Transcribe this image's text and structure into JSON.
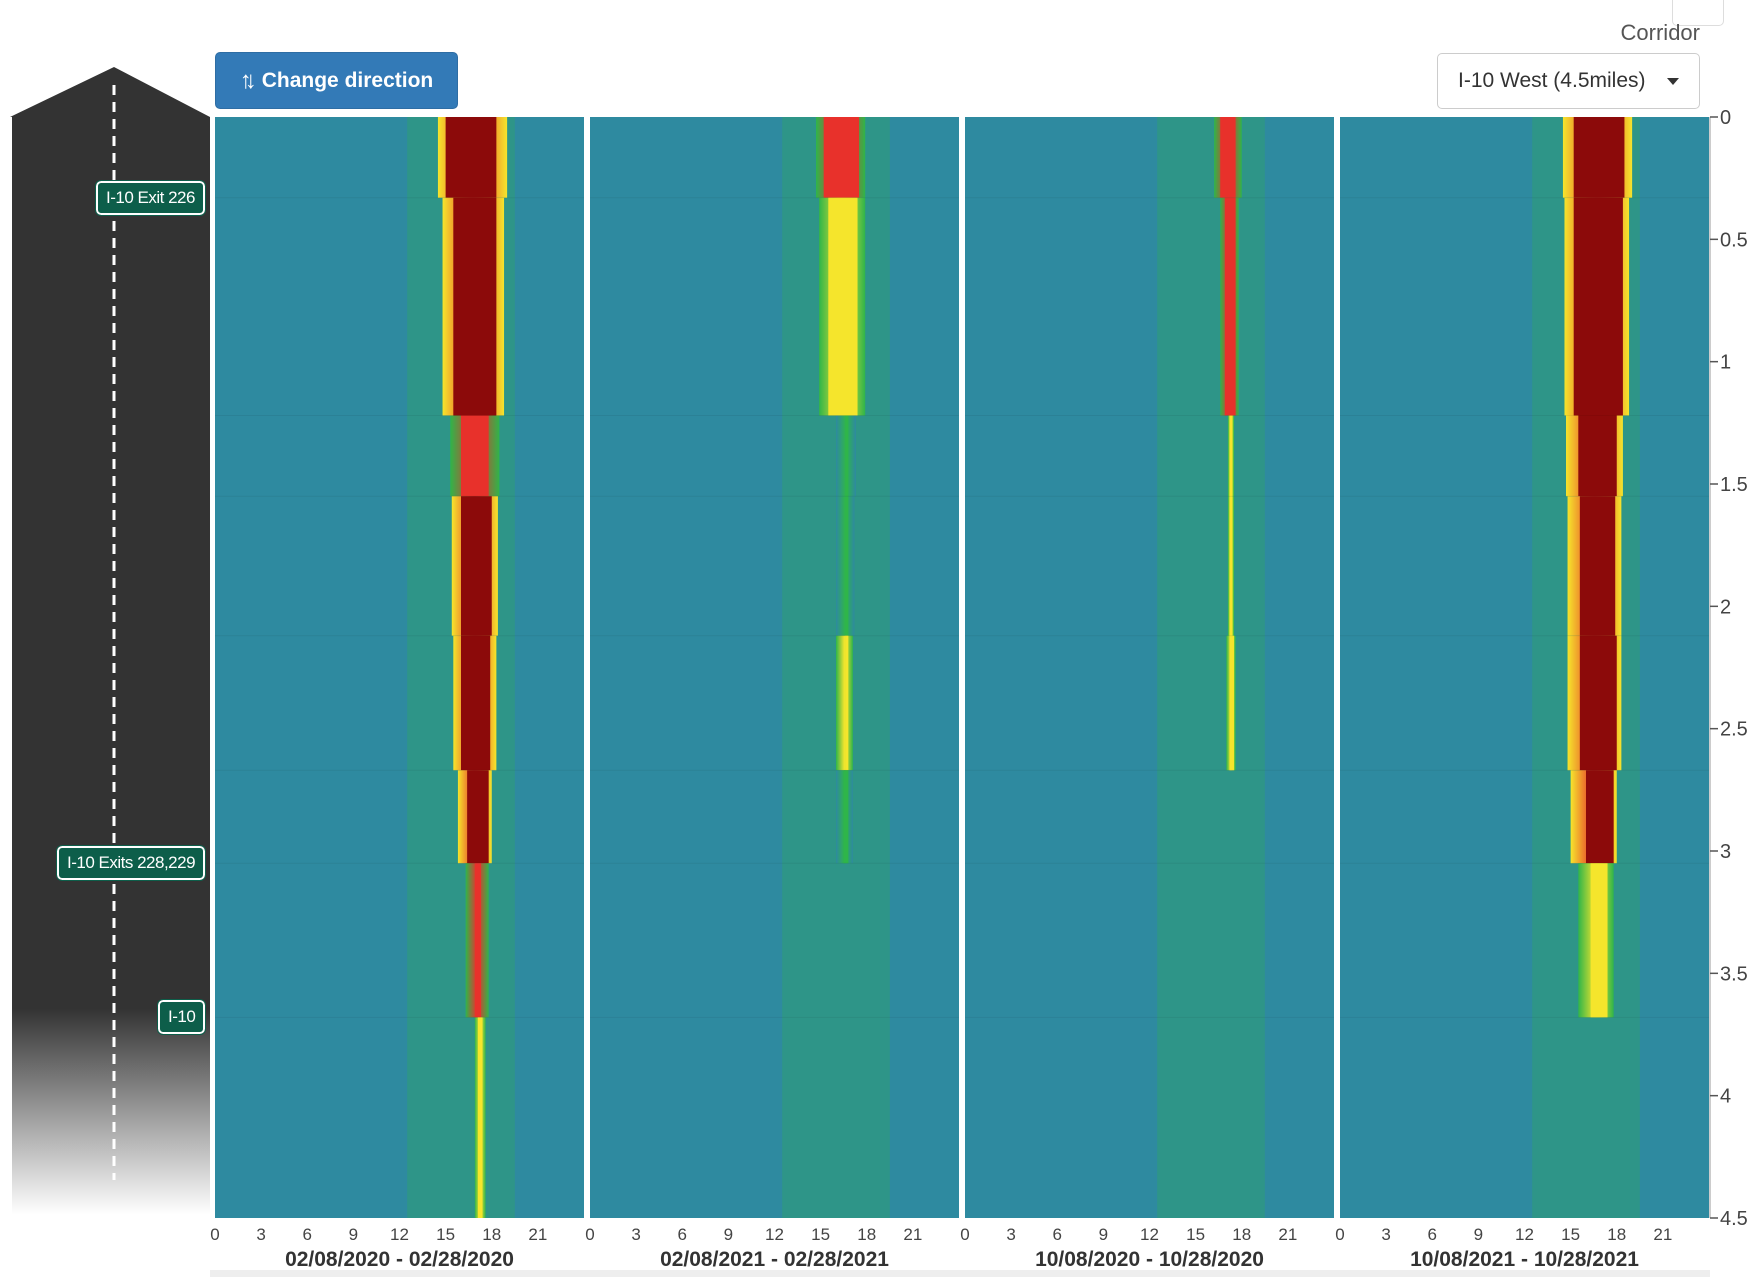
{
  "controls": {
    "change_direction_label": "Change direction",
    "change_direction_icon": "up-down-arrows-icon",
    "corridor_label": "Corridor",
    "corridor_value": "I-10 West (4.5miles)"
  },
  "ramps": [
    {
      "label": "I-10 Exit 226",
      "mile": 0.33
    },
    {
      "label": "I-10 Exits 228,229",
      "mile": 3.05
    },
    {
      "label": "I-10",
      "mile": 3.68
    }
  ],
  "colors": {
    "low": "#2e8aa0",
    "free_flow": "#2fb54a",
    "moderate": "#f5e52c",
    "heavy": "#e8312b",
    "severe": "#8c0a0a",
    "road": "#333333",
    "ramp_badge": "#0d5e4a"
  },
  "chart_data": {
    "type": "heatmap",
    "y_axis": {
      "ticks": [
        "0",
        "0.5",
        "1",
        "1.5",
        "2",
        "2.5",
        "3",
        "3.5",
        "4",
        "4.5"
      ],
      "range": [
        0,
        4.5
      ],
      "reversed": true
    },
    "x_axis": {
      "ticks": [
        "0",
        "3",
        "6",
        "9",
        "12",
        "15",
        "18",
        "21"
      ],
      "range": [
        0,
        24
      ]
    },
    "segments": [
      0,
      0.33,
      1.22,
      1.55,
      2.12,
      2.67,
      3.05,
      3.68,
      4.5
    ],
    "panels": [
      {
        "title": "02/08/2020 - 02/28/2020",
        "congestion": [
          {
            "segment": 0,
            "start": 14.5,
            "end": 19.0,
            "core_start": 15.0,
            "core_end": 18.3,
            "level": "severe"
          },
          {
            "segment": 1,
            "start": 14.8,
            "end": 18.8,
            "core_start": 15.5,
            "core_end": 18.3,
            "level": "severe"
          },
          {
            "segment": 2,
            "start": 15.3,
            "end": 18.5,
            "core_start": 16.0,
            "core_end": 17.8,
            "level": "heavy"
          },
          {
            "segment": 3,
            "start": 15.4,
            "end": 18.4,
            "core_start": 16.0,
            "core_end": 18.0,
            "level": "severe"
          },
          {
            "segment": 4,
            "start": 15.5,
            "end": 18.3,
            "core_start": 16.0,
            "core_end": 17.9,
            "level": "severe"
          },
          {
            "segment": 5,
            "start": 15.8,
            "end": 18.0,
            "core_start": 16.4,
            "core_end": 17.8,
            "level": "severe"
          },
          {
            "segment": 6,
            "start": 16.3,
            "end": 17.8,
            "core_start": 16.9,
            "core_end": 17.3,
            "level": "heavy"
          },
          {
            "segment": 7,
            "start": 16.9,
            "end": 17.6,
            "core_start": 17.1,
            "core_end": 17.4,
            "level": "moderate"
          }
        ]
      },
      {
        "title": "02/08/2021 - 02/28/2021",
        "congestion": [
          {
            "segment": 0,
            "start": 14.7,
            "end": 17.9,
            "core_start": 15.2,
            "core_end": 17.5,
            "level": "heavy"
          },
          {
            "segment": 1,
            "start": 14.9,
            "end": 17.9,
            "core_start": 15.5,
            "core_end": 17.4,
            "level": "moderate"
          },
          {
            "segment": 2,
            "start": 16.0,
            "end": 17.3,
            "core_start": 16.6,
            "core_end": 16.8,
            "level": "free_flow"
          },
          {
            "segment": 3,
            "start": 16.0,
            "end": 17.2,
            "core_start": 16.6,
            "core_end": 16.8,
            "level": "free_flow"
          },
          {
            "segment": 4,
            "start": 16.0,
            "end": 17.1,
            "core_start": 16.6,
            "core_end": 16.8,
            "level": "moderate"
          },
          {
            "segment": 5,
            "start": 16.0,
            "end": 17.1,
            "core_start": 16.5,
            "core_end": 16.8,
            "level": "free_flow"
          }
        ]
      },
      {
        "title": "10/08/2020 - 10/28/2020",
        "congestion": [
          {
            "segment": 0,
            "start": 16.2,
            "end": 18.0,
            "core_start": 16.6,
            "core_end": 17.6,
            "level": "heavy"
          },
          {
            "segment": 1,
            "start": 16.6,
            "end": 17.8,
            "core_start": 16.9,
            "core_end": 17.6,
            "level": "heavy"
          },
          {
            "segment": 2,
            "start": 17.1,
            "end": 17.5,
            "core_start": 17.2,
            "core_end": 17.4,
            "level": "moderate"
          },
          {
            "segment": 3,
            "start": 17.1,
            "end": 17.5,
            "core_start": 17.2,
            "core_end": 17.4,
            "level": "moderate"
          },
          {
            "segment": 4,
            "start": 17.0,
            "end": 17.6,
            "core_start": 17.2,
            "core_end": 17.5,
            "level": "moderate"
          }
        ]
      },
      {
        "title": "10/08/2021 - 10/28/2021",
        "congestion": [
          {
            "segment": 0,
            "start": 14.5,
            "end": 19.0,
            "core_start": 15.2,
            "core_end": 18.5,
            "level": "severe"
          },
          {
            "segment": 1,
            "start": 14.6,
            "end": 18.8,
            "core_start": 15.2,
            "core_end": 18.4,
            "level": "severe"
          },
          {
            "segment": 2,
            "start": 14.7,
            "end": 18.4,
            "core_start": 15.5,
            "core_end": 18.0,
            "level": "severe"
          },
          {
            "segment": 3,
            "start": 14.8,
            "end": 18.3,
            "core_start": 15.6,
            "core_end": 17.9,
            "level": "severe"
          },
          {
            "segment": 4,
            "start": 14.8,
            "end": 18.3,
            "core_start": 15.6,
            "core_end": 18.0,
            "level": "severe"
          },
          {
            "segment": 5,
            "start": 15.0,
            "end": 18.0,
            "core_start": 16.0,
            "core_end": 17.8,
            "level": "severe"
          },
          {
            "segment": 6,
            "start": 15.5,
            "end": 17.8,
            "core_start": 16.3,
            "core_end": 17.4,
            "level": "moderate"
          }
        ]
      }
    ]
  }
}
